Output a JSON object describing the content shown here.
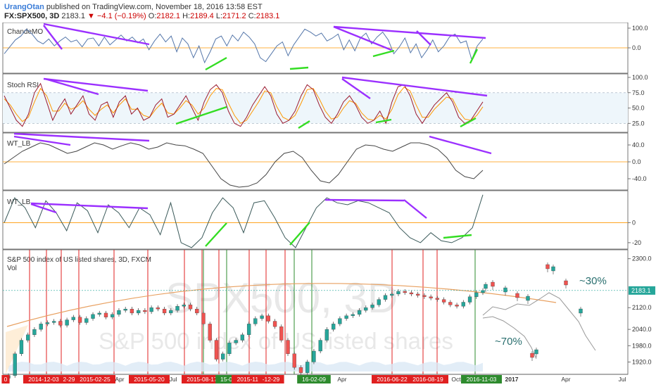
{
  "header": {
    "author": "UrangOtan",
    "published": " published on TradingView.com, November 18, 2016 13:58 EST",
    "symbol": "FX:SPX500, 3D",
    "last": "2183.1",
    "change": "▼ −4.1 (−0.19%)",
    "o_label": "O:",
    "o_val": "2182.1",
    "h_label": "H:",
    "h_val": "2189.4",
    "l_label": "L:",
    "l_val": "2171.2",
    "c_label": "C:",
    "c_val": "2183.1"
  },
  "colors": {
    "price_up": "#26a69a",
    "price_down": "#ef5350",
    "trend_purple": "#9b30ff",
    "trend_green": "#33dd22",
    "oscillator": "#5577aa",
    "signal": "#ff9800",
    "red_vline": "#e02020",
    "green_vline": "#2e8b2e"
  },
  "chart_data": {
    "type": "line",
    "panes": [
      {
        "name": "ChandeMO",
        "yticks": [
          "100.0",
          "0.0"
        ],
        "ylim": [
          -100,
          100
        ],
        "series": [
          {
            "values": [
              -30,
              5,
              40,
              60,
              95,
              70,
              35,
              20,
              45,
              10,
              35,
              55,
              30,
              40,
              5,
              45,
              50,
              10,
              55,
              15,
              40,
              65,
              35,
              55,
              25,
              45,
              -10,
              35,
              70,
              30,
              60,
              -20,
              50,
              20,
              -50,
              10,
              -75,
              -20,
              45,
              60,
              10,
              65,
              35,
              80,
              55,
              20,
              -50,
              -70,
              -30,
              10,
              30,
              -40,
              15,
              55,
              95,
              80,
              60,
              75,
              35,
              50,
              70,
              -10,
              40,
              -15,
              50,
              75,
              20,
              55,
              80,
              40,
              -30,
              5,
              50,
              -25,
              20,
              -50,
              -10,
              40,
              -20,
              10,
              55,
              70,
              25,
              35,
              -60,
              10,
              45
            ]
          }
        ]
      },
      {
        "name": "Stoch RSI",
        "yticks": [
          "100.0",
          "75.0",
          "50.0",
          "25.0"
        ],
        "ylim": [
          15,
          100
        ],
        "series": [
          {
            "values": [
              70,
              50,
              30,
              20,
              40,
              75,
              90,
              60,
              30,
              50,
              65,
              40,
              55,
              70,
              40,
              30,
              55,
              60,
              35,
              60,
              70,
              40,
              50,
              30,
              35,
              55,
              65,
              35,
              40,
              55,
              70,
              50,
              30,
              60,
              80,
              88,
              75,
              45,
              25,
              20,
              35,
              55,
              70,
              85,
              70,
              40,
              25,
              30,
              45,
              70,
              88,
              80,
              55,
              35,
              25,
              40,
              60,
              70,
              55,
              35,
              25,
              30,
              45,
              25,
              60,
              85,
              88,
              70,
              40,
              25,
              40,
              55,
              65,
              75,
              60,
              35,
              25,
              30,
              45,
              60
            ]
          },
          {
            "values": [
              65,
              55,
              40,
              28,
              35,
              60,
              82,
              70,
              45,
              45,
              58,
              48,
              52,
              62,
              48,
              38,
              48,
              55,
              42,
              55,
              65,
              48,
              48,
              38,
              35,
              48,
              58,
              42,
              40,
              50,
              62,
              55,
              40,
              50,
              70,
              82,
              80,
              58,
              38,
              25,
              30,
              45,
              60,
              78,
              75,
              52,
              35,
              30,
              38,
              58,
              80,
              82,
              65,
              45,
              32,
              35,
              50,
              62,
              58,
              42,
              32,
              30,
              38,
              32,
              48,
              72,
              84,
              78,
              55,
              35,
              35,
              48,
              58,
              68,
              65,
              45,
              32,
              30,
              38,
              52
            ]
          }
        ]
      },
      {
        "name": "WT_LB",
        "yticks": [
          "40.0",
          "0.0",
          "-40.0"
        ],
        "ylim": [
          -60,
          60
        ],
        "series": [
          {
            "values": [
              -5,
              10,
              25,
              35,
              45,
              40,
              30,
              20,
              25,
              35,
              45,
              40,
              30,
              38,
              45,
              40,
              30,
              35,
              45,
              40,
              38,
              30,
              20,
              -10,
              -40,
              -55,
              -60,
              -58,
              -50,
              -30,
              0,
              20,
              25,
              10,
              -20,
              -45,
              -50,
              -30,
              0,
              30,
              40,
              38,
              30,
              25,
              35,
              45,
              45,
              40,
              30,
              10,
              -20,
              -35,
              -40,
              -20
            ]
          }
        ]
      },
      {
        "name": "WT_LB",
        "yticks": [
          "0",
          "-20"
        ],
        "ylim": [
          -25,
          30
        ],
        "series": [
          {
            "values": [
              0,
              25,
              15,
              -5,
              22,
              10,
              -8,
              20,
              12,
              -10,
              18,
              10,
              -5,
              15,
              8,
              -12,
              20,
              -20,
              -25,
              -15,
              10,
              25,
              15,
              -10,
              20,
              22,
              5,
              -15,
              -25,
              -5,
              15,
              25,
              20,
              18,
              22,
              20,
              15,
              10,
              -5,
              -15,
              -20,
              -10,
              -18,
              -20,
              -15,
              -5,
              28
            ]
          }
        ]
      },
      {
        "name": "S&P 500 index of US listed shares, 3D, FXCM",
        "sub": "Vol",
        "yticks": [
          "2300.0",
          "2183.1",
          "2120.0",
          "2040.0",
          "1980.0",
          "1920.0"
        ],
        "ylim": [
          1890,
          2320
        ],
        "last_price": "2183.1",
        "watermark_big": "SPX500, 3D",
        "watermark_small": "S&P 500 index of US listed shares",
        "annotations": [
          "~30%",
          "~70%"
        ],
        "closes": [
          1870,
          1950,
          2000,
          2020,
          2040,
          2060,
          2065,
          2070,
          2055,
          2075,
          2085,
          2065,
          2080,
          2095,
          2100,
          2085,
          2095,
          2110,
          2115,
          2100,
          2110,
          2105,
          2120,
          2115,
          2100,
          2110,
          2125,
          2130,
          2115,
          2100,
          2060,
          2000,
          1930,
          1950,
          1990,
          2000,
          2020,
          2060,
          2080,
          2090,
          2070,
          2050,
          2000,
          1950,
          1900,
          1880,
          1920,
          1960,
          2000,
          2040,
          2060,
          2080,
          2090,
          2095,
          2110,
          2120,
          2130,
          2150,
          2165,
          2170,
          2180,
          2175,
          2170,
          2165,
          2160,
          2155,
          2150,
          2140,
          2130,
          2125,
          2140,
          2160,
          2175,
          2183
        ]
      }
    ],
    "xaxis_labels": [
      "0",
      "2014-12-03",
      "2-29",
      "2015-02-25",
      "Apr",
      "2015-05-20",
      "Jul",
      "2015-08-17",
      "15-09-28",
      "2015-11-30",
      "-12-29",
      "16-02-09",
      "Apr",
      "2016-06-22",
      "2016-08-19",
      "Oct",
      "2016-11-03",
      "2017",
      "Apr",
      "Jul"
    ],
    "xaxis_label_kind": [
      "r",
      "r",
      "r",
      "r",
      "n",
      "r",
      "n",
      "r",
      "g",
      "r",
      "r",
      "g",
      "n",
      "r",
      "r",
      "n",
      "g",
      "b",
      "n",
      "n"
    ]
  }
}
